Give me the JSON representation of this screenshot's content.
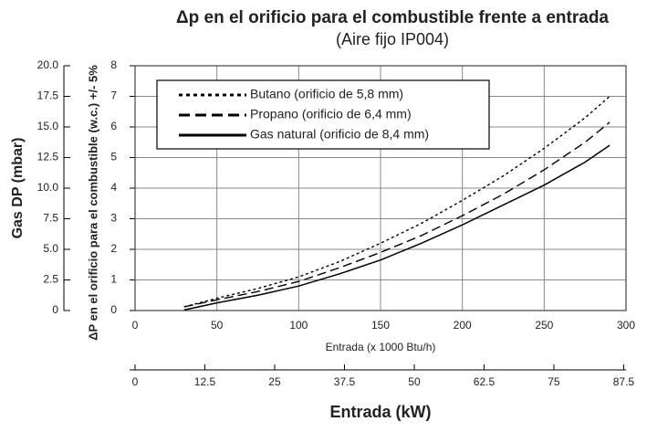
{
  "chart_data": {
    "type": "line",
    "title": "Δp en el orificio para el combustible frente a entrada",
    "subtitle": "(Aire fijo IP004)",
    "x_label": "Entrada (x 1000 Btu/h)",
    "y_label": "ΔP en el orificio para el combustible (w.c.) +/- 5%",
    "y2_label": "Gas DP (mbar)",
    "x2_label": "Entrada (kW)",
    "x": [
      30,
      50,
      75,
      100,
      125,
      150,
      175,
      200,
      225,
      250,
      275,
      290
    ],
    "series": [
      {
        "name": "Butano (orificio de 5,8 mm)",
        "color": "#000000",
        "dash": "dotted",
        "values": [
          0.12,
          0.4,
          0.72,
          1.1,
          1.6,
          2.2,
          2.85,
          3.6,
          4.4,
          5.3,
          6.3,
          7.0
        ]
      },
      {
        "name": "Propano (orificio de 6,4 mm)",
        "color": "#000000",
        "dash": "dashed",
        "values": [
          0.12,
          0.35,
          0.62,
          0.95,
          1.4,
          1.9,
          2.45,
          3.1,
          3.8,
          4.6,
          5.5,
          6.15
        ]
      },
      {
        "name": "Gas natural (orificio de 8,4 mm)",
        "color": "#000000",
        "dash": "solid",
        "values": [
          0.02,
          0.25,
          0.5,
          0.8,
          1.2,
          1.65,
          2.2,
          2.8,
          3.45,
          4.1,
          4.85,
          5.4
        ]
      }
    ],
    "xlim": [
      0,
      300
    ],
    "xticks": [
      0,
      50,
      100,
      150,
      200,
      250,
      300
    ],
    "ylim": [
      0,
      8
    ],
    "yticks": [
      0,
      1,
      2,
      3,
      4,
      5,
      6,
      7,
      8
    ],
    "y2lim": [
      0,
      20
    ],
    "y2ticks": [
      0,
      2.5,
      {
        "value": 5,
        "label": "5.0"
      },
      7.5,
      {
        "value": 10,
        "label": "10.0"
      },
      12.5,
      {
        "value": 15,
        "label": "15.0"
      },
      17.5,
      {
        "value": 20,
        "label": "20.0"
      }
    ],
    "x2lim": [
      0,
      87.92
    ],
    "x2ticks": [
      0,
      12.5,
      25,
      37.5,
      50,
      62.5,
      75,
      87.5
    ],
    "grid": true,
    "legend": "top-left"
  }
}
